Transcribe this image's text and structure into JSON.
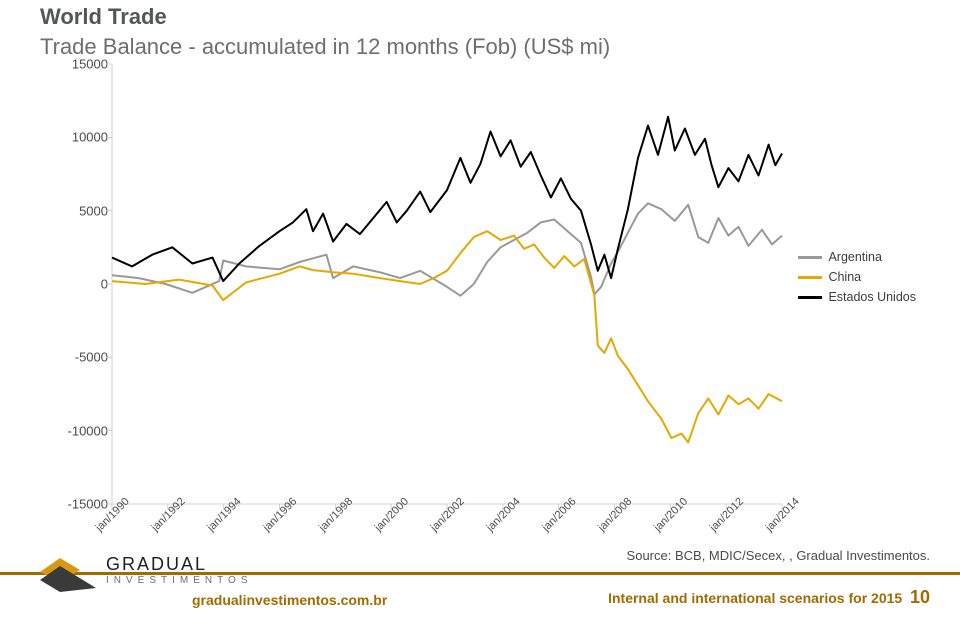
{
  "page": {
    "title": "World Trade"
  },
  "chart": {
    "type": "line",
    "title": "Trade Balance - accumulated in 12 months (Fob) (US$ mi)",
    "ylim": [
      -15000,
      15000
    ],
    "ytick_step": 5000,
    "y_ticks": [
      15000,
      10000,
      5000,
      0,
      -5000,
      -10000,
      -15000
    ],
    "x_labels": [
      "jan/1990",
      "jan/1992",
      "jan/1994",
      "jan/1996",
      "jan/1998",
      "jan/2000",
      "jan/2002",
      "jan/2004",
      "jan/2006",
      "jan/2008",
      "jan/2010",
      "jan/2012",
      "jan/2014"
    ],
    "x_label_rotate": -45,
    "line_width": 2,
    "background_color": "#ffffff",
    "axis_color": "#c7c7c7",
    "series": [
      {
        "name": "Argentina",
        "color": "#999999",
        "data": [
          [
            0.0,
            600
          ],
          [
            0.04,
            400
          ],
          [
            0.08,
            0
          ],
          [
            0.12,
            -600
          ],
          [
            0.16,
            200
          ],
          [
            0.166,
            1600
          ],
          [
            0.2,
            1200
          ],
          [
            0.25,
            1000
          ],
          [
            0.28,
            1500
          ],
          [
            0.32,
            2000
          ],
          [
            0.33,
            400
          ],
          [
            0.36,
            1200
          ],
          [
            0.4,
            800
          ],
          [
            0.43,
            400
          ],
          [
            0.46,
            900
          ],
          [
            0.5,
            -200
          ],
          [
            0.52,
            -800
          ],
          [
            0.54,
            0
          ],
          [
            0.56,
            1500
          ],
          [
            0.58,
            2500
          ],
          [
            0.6,
            3000
          ],
          [
            0.62,
            3500
          ],
          [
            0.64,
            4200
          ],
          [
            0.66,
            4400
          ],
          [
            0.68,
            3600
          ],
          [
            0.7,
            2800
          ],
          [
            0.715,
            500
          ],
          [
            0.72,
            -700
          ],
          [
            0.73,
            -200
          ],
          [
            0.745,
            1400
          ],
          [
            0.755,
            2200
          ],
          [
            0.77,
            3500
          ],
          [
            0.785,
            4800
          ],
          [
            0.8,
            5500
          ],
          [
            0.82,
            5100
          ],
          [
            0.84,
            4300
          ],
          [
            0.86,
            5400
          ],
          [
            0.875,
            3200
          ],
          [
            0.89,
            2800
          ],
          [
            0.905,
            4500
          ],
          [
            0.92,
            3300
          ],
          [
            0.935,
            3900
          ],
          [
            0.95,
            2600
          ],
          [
            0.97,
            3700
          ],
          [
            0.985,
            2700
          ],
          [
            1.0,
            3300
          ]
        ]
      },
      {
        "name": "China",
        "color": "#e6a800",
        "data": [
          [
            0.0,
            200
          ],
          [
            0.05,
            0
          ],
          [
            0.1,
            300
          ],
          [
            0.15,
            -100
          ],
          [
            0.166,
            -1100
          ],
          [
            0.2,
            100
          ],
          [
            0.25,
            700
          ],
          [
            0.28,
            1200
          ],
          [
            0.3,
            950
          ],
          [
            0.33,
            800
          ],
          [
            0.36,
            700
          ],
          [
            0.4,
            400
          ],
          [
            0.43,
            200
          ],
          [
            0.46,
            0
          ],
          [
            0.48,
            400
          ],
          [
            0.5,
            900
          ],
          [
            0.52,
            2100
          ],
          [
            0.54,
            3200
          ],
          [
            0.56,
            3600
          ],
          [
            0.58,
            3000
          ],
          [
            0.6,
            3300
          ],
          [
            0.615,
            2400
          ],
          [
            0.63,
            2700
          ],
          [
            0.645,
            1800
          ],
          [
            0.66,
            1100
          ],
          [
            0.675,
            1900
          ],
          [
            0.69,
            1200
          ],
          [
            0.705,
            1700
          ],
          [
            0.72,
            -800
          ],
          [
            0.725,
            -4200
          ],
          [
            0.735,
            -4700
          ],
          [
            0.745,
            -3700
          ],
          [
            0.755,
            -4900
          ],
          [
            0.77,
            -5800
          ],
          [
            0.785,
            -6900
          ],
          [
            0.8,
            -8000
          ],
          [
            0.82,
            -9200
          ],
          [
            0.835,
            -10500
          ],
          [
            0.85,
            -10200
          ],
          [
            0.86,
            -10800
          ],
          [
            0.875,
            -8800
          ],
          [
            0.89,
            -7800
          ],
          [
            0.905,
            -8900
          ],
          [
            0.92,
            -7600
          ],
          [
            0.935,
            -8200
          ],
          [
            0.95,
            -7800
          ],
          [
            0.965,
            -8500
          ],
          [
            0.98,
            -7500
          ],
          [
            1.0,
            -8000
          ]
        ]
      },
      {
        "name": "Estados Unidos",
        "color": "#000000",
        "data": [
          [
            0.0,
            1800
          ],
          [
            0.03,
            1200
          ],
          [
            0.06,
            2000
          ],
          [
            0.09,
            2500
          ],
          [
            0.12,
            1400
          ],
          [
            0.15,
            1800
          ],
          [
            0.166,
            200
          ],
          [
            0.19,
            1400
          ],
          [
            0.22,
            2600
          ],
          [
            0.25,
            3600
          ],
          [
            0.27,
            4200
          ],
          [
            0.29,
            5100
          ],
          [
            0.3,
            3600
          ],
          [
            0.315,
            4800
          ],
          [
            0.33,
            2900
          ],
          [
            0.35,
            4100
          ],
          [
            0.37,
            3400
          ],
          [
            0.39,
            4500
          ],
          [
            0.41,
            5600
          ],
          [
            0.425,
            4200
          ],
          [
            0.44,
            5000
          ],
          [
            0.46,
            6300
          ],
          [
            0.475,
            4900
          ],
          [
            0.5,
            6400
          ],
          [
            0.52,
            8600
          ],
          [
            0.535,
            6900
          ],
          [
            0.55,
            8200
          ],
          [
            0.565,
            10400
          ],
          [
            0.58,
            8700
          ],
          [
            0.595,
            9800
          ],
          [
            0.61,
            8000
          ],
          [
            0.625,
            9000
          ],
          [
            0.64,
            7400
          ],
          [
            0.655,
            5900
          ],
          [
            0.67,
            7200
          ],
          [
            0.685,
            5800
          ],
          [
            0.7,
            5000
          ],
          [
            0.715,
            2700
          ],
          [
            0.725,
            900
          ],
          [
            0.735,
            2000
          ],
          [
            0.745,
            400
          ],
          [
            0.755,
            2400
          ],
          [
            0.77,
            5100
          ],
          [
            0.785,
            8600
          ],
          [
            0.8,
            10800
          ],
          [
            0.815,
            8800
          ],
          [
            0.83,
            11400
          ],
          [
            0.84,
            9100
          ],
          [
            0.855,
            10600
          ],
          [
            0.87,
            8800
          ],
          [
            0.885,
            9900
          ],
          [
            0.895,
            8100
          ],
          [
            0.905,
            6600
          ],
          [
            0.92,
            7900
          ],
          [
            0.935,
            7000
          ],
          [
            0.95,
            8800
          ],
          [
            0.965,
            7400
          ],
          [
            0.98,
            9500
          ],
          [
            0.99,
            8100
          ],
          [
            1.0,
            8900
          ]
        ]
      }
    ]
  },
  "legend": {
    "items": [
      {
        "label": "Argentina",
        "color": "#999999"
      },
      {
        "label": "China",
        "color": "#e6a800"
      },
      {
        "label": "Estados Unidos",
        "color": "#000000"
      }
    ]
  },
  "source_line": "Source: BCB, MDIC/Secex, , Gradual Investimentos.",
  "footer": {
    "accent_color": "#a36a00",
    "logo_accent": "#d99812",
    "logo_dark": "#3a3a3a",
    "brand_line1": "GRADUAL",
    "brand_line2": "INVESTIMENTOS",
    "url": "gradualinvestimentos.com.br",
    "right_text": "Internal and international scenarios for 2015",
    "page_number": "10"
  }
}
